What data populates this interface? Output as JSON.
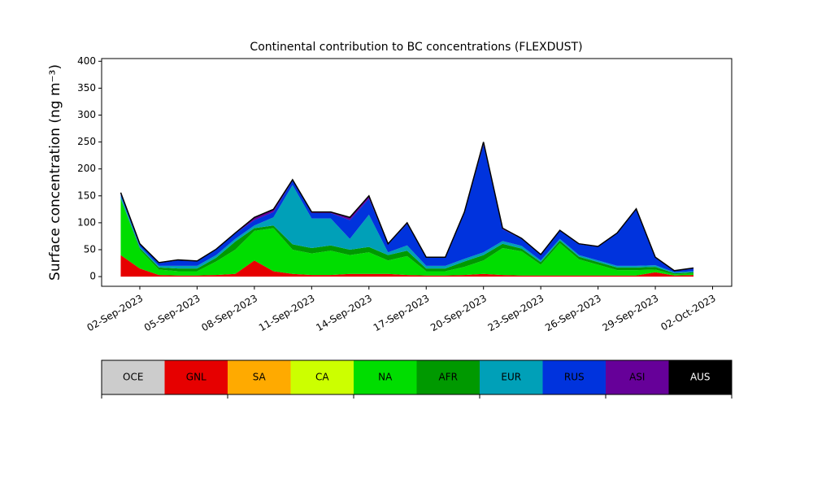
{
  "chart_data": {
    "type": "stacked_area",
    "title": "Continental contribution to BC concentrations (FLEXDUST)",
    "y_label": "Surface concentration (ng m⁻³)",
    "x": [
      "2023-09-01",
      "2023-09-02",
      "2023-09-03",
      "2023-09-04",
      "2023-09-05",
      "2023-09-06",
      "2023-09-07",
      "2023-09-08",
      "2023-09-09",
      "2023-09-10",
      "2023-09-11",
      "2023-09-12",
      "2023-09-13",
      "2023-09-14",
      "2023-09-15",
      "2023-09-16",
      "2023-09-17",
      "2023-09-18",
      "2023-09-19",
      "2023-09-20",
      "2023-09-21",
      "2023-09-22",
      "2023-09-23",
      "2023-09-24",
      "2023-09-25",
      "2023-09-26",
      "2023-09-27",
      "2023-09-28",
      "2023-09-29",
      "2023-09-30",
      "2023-10-01"
    ],
    "series": [
      {
        "name": "OCE",
        "color": "#cccccc",
        "values": [
          0,
          0,
          0,
          0,
          0,
          0,
          0,
          0,
          0,
          0,
          0,
          0,
          0,
          0,
          0,
          0,
          0,
          0,
          0,
          0,
          0,
          0,
          0,
          0,
          0,
          0,
          0,
          0,
          0,
          0,
          0
        ]
      },
      {
        "name": "GNL",
        "color": "#e60000",
        "values": [
          40,
          15,
          3,
          2,
          2,
          3,
          5,
          30,
          10,
          5,
          3,
          3,
          5,
          5,
          5,
          3,
          2,
          2,
          3,
          5,
          3,
          2,
          2,
          2,
          2,
          2,
          2,
          2,
          8,
          2,
          3
        ]
      },
      {
        "name": "SA",
        "color": "#ffaa00",
        "values": [
          0,
          0,
          0,
          0,
          0,
          0,
          0,
          0,
          0,
          0,
          0,
          0,
          0,
          0,
          0,
          0,
          0,
          0,
          0,
          0,
          0,
          0,
          0,
          0,
          0,
          0,
          0,
          0,
          0,
          0,
          0
        ]
      },
      {
        "name": "CA",
        "color": "#ccff00",
        "values": [
          0,
          0,
          0,
          0,
          0,
          0,
          0,
          0,
          0,
          0,
          0,
          0,
          0,
          0,
          0,
          0,
          0,
          0,
          0,
          0,
          0,
          0,
          0,
          0,
          0,
          0,
          0,
          0,
          0,
          0,
          0
        ]
      },
      {
        "name": "NA",
        "color": "#00dd00",
        "values": [
          105,
          35,
          10,
          8,
          8,
          25,
          45,
          55,
          80,
          45,
          40,
          45,
          35,
          40,
          25,
          35,
          8,
          8,
          15,
          25,
          50,
          45,
          20,
          60,
          30,
          20,
          10,
          10,
          5,
          2,
          3
        ]
      },
      {
        "name": "AFR",
        "color": "#009900",
        "values": [
          0,
          3,
          4,
          5,
          5,
          7,
          15,
          5,
          5,
          10,
          10,
          10,
          10,
          10,
          10,
          10,
          5,
          5,
          10,
          10,
          8,
          5,
          5,
          5,
          5,
          5,
          5,
          5,
          5,
          2,
          2
        ]
      },
      {
        "name": "EUR",
        "color": "#00a0b8",
        "values": [
          5,
          3,
          3,
          5,
          5,
          5,
          5,
          5,
          15,
          110,
          55,
          50,
          20,
          60,
          5,
          10,
          5,
          5,
          5,
          5,
          5,
          5,
          3,
          3,
          3,
          3,
          3,
          3,
          3,
          2,
          2
        ]
      },
      {
        "name": "RUS",
        "color": "#0033dd",
        "values": [
          5,
          4,
          5,
          10,
          8,
          10,
          10,
          10,
          10,
          8,
          10,
          10,
          35,
          30,
          15,
          40,
          15,
          15,
          85,
          200,
          22,
          13,
          10,
          15,
          20,
          25,
          60,
          105,
          14,
          2,
          5
        ]
      },
      {
        "name": "ASI",
        "color": "#660099",
        "values": [
          1,
          1,
          1,
          1,
          1,
          1,
          1,
          5,
          5,
          2,
          2,
          2,
          5,
          5,
          1,
          2,
          1,
          1,
          2,
          5,
          2,
          1,
          1,
          1,
          1,
          1,
          1,
          1,
          1,
          1,
          1
        ]
      },
      {
        "name": "AUS",
        "color": "#000000",
        "values": [
          0,
          0,
          0,
          0,
          0,
          0,
          0,
          0,
          0,
          0,
          0,
          0,
          0,
          0,
          0,
          0,
          0,
          0,
          0,
          0,
          0,
          0,
          0,
          0,
          0,
          0,
          0,
          0,
          0,
          0,
          0
        ]
      }
    ],
    "xlim": [
      "2023-08-31",
      "2023-10-03"
    ],
    "xticks": [
      {
        "value": "2023-09-02",
        "label": "02-Sep-2023"
      },
      {
        "value": "2023-09-05",
        "label": "05-Sep-2023"
      },
      {
        "value": "2023-09-08",
        "label": "08-Sep-2023"
      },
      {
        "value": "2023-09-11",
        "label": "11-Sep-2023"
      },
      {
        "value": "2023-09-14",
        "label": "14-Sep-2023"
      },
      {
        "value": "2023-09-17",
        "label": "17-Sep-2023"
      },
      {
        "value": "2023-09-20",
        "label": "20-Sep-2023"
      },
      {
        "value": "2023-09-23",
        "label": "23-Sep-2023"
      },
      {
        "value": "2023-09-26",
        "label": "26-Sep-2023"
      },
      {
        "value": "2023-09-29",
        "label": "29-Sep-2023"
      },
      {
        "value": "2023-10-02",
        "label": "02-Oct-2023"
      }
    ],
    "ylim": [
      -18,
      405
    ],
    "yticks": [
      0,
      50,
      100,
      150,
      200,
      250,
      300,
      350,
      400
    ]
  }
}
